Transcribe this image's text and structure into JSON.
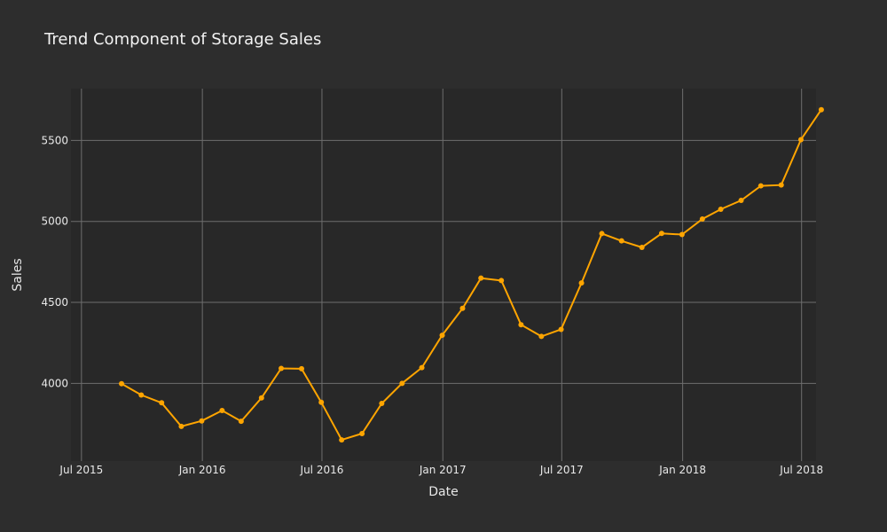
{
  "chart_data": {
    "type": "line",
    "title": "Trend Component of Storage Sales",
    "xlabel": "Date",
    "ylabel": "Sales",
    "x_ticks": [
      {
        "date": "2015-07-01",
        "label": "Jul 2015"
      },
      {
        "date": "2016-01-01",
        "label": "Jan 2016"
      },
      {
        "date": "2016-07-01",
        "label": "Jul 2016"
      },
      {
        "date": "2017-01-01",
        "label": "Jan 2017"
      },
      {
        "date": "2017-07-01",
        "label": "Jul 2017"
      },
      {
        "date": "2018-01-01",
        "label": "Jan 2018"
      },
      {
        "date": "2018-07-01",
        "label": "Jul 2018"
      }
    ],
    "y_ticks": [
      4000,
      4500,
      5000,
      5500
    ],
    "xlim": [
      "2015-06-15",
      "2018-07-23"
    ],
    "ylim": [
      3520,
      5820
    ],
    "grid": true,
    "line_color": "#ffa500",
    "x": [
      "2015-08-31",
      "2015-09-30",
      "2015-10-31",
      "2015-11-30",
      "2015-12-31",
      "2016-01-31",
      "2016-02-29",
      "2016-03-31",
      "2016-04-30",
      "2016-05-31",
      "2016-06-30",
      "2016-07-31",
      "2016-08-31",
      "2016-09-30",
      "2016-10-31",
      "2016-11-30",
      "2016-12-31",
      "2017-01-31",
      "2017-02-28",
      "2017-03-31",
      "2017-04-30",
      "2017-05-31",
      "2017-06-30",
      "2017-07-31",
      "2017-08-31",
      "2017-09-30",
      "2017-10-31",
      "2017-11-30",
      "2017-12-31",
      "2018-01-31",
      "2018-02-28",
      "2018-03-31",
      "2018-04-30",
      "2018-05-31",
      "2018-06-30",
      "2018-07-31"
    ],
    "y": [
      3998,
      3928,
      3880,
      3734,
      3768,
      3832,
      3766,
      3910,
      4092,
      4090,
      3883,
      3651,
      3690,
      3876,
      4000,
      4097,
      4297,
      4463,
      4650,
      4635,
      4362,
      4290,
      4333,
      4620,
      4925,
      4880,
      4840,
      4926,
      4919,
      5015,
      5075,
      5130,
      5220,
      5225,
      5505,
      5690
    ]
  }
}
